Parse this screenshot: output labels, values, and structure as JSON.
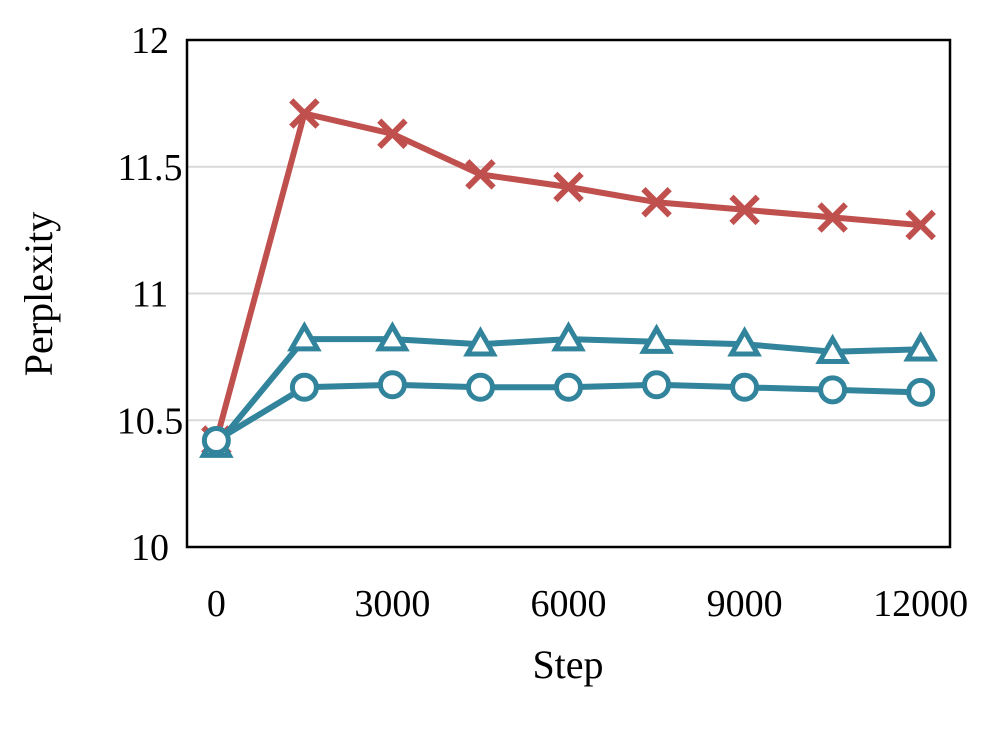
{
  "chart_data": {
    "type": "line",
    "title": "",
    "xlabel": "Step",
    "ylabel": "Perplexity",
    "xlim": [
      -500,
      12500
    ],
    "ylim": [
      10,
      12
    ],
    "xticks": [
      0,
      3000,
      6000,
      9000,
      12000
    ],
    "yticks": [
      10,
      10.5,
      11,
      11.5,
      12
    ],
    "ytick_labels": [
      "10",
      "10.5",
      "11",
      "11.5",
      "12"
    ],
    "grid": "horizontal",
    "legend": "none",
    "x": [
      0,
      1500,
      3000,
      4500,
      6000,
      7500,
      9000,
      10500,
      12000
    ],
    "series": [
      {
        "marker": "x",
        "color": "#c0504d",
        "values": [
          10.42,
          11.71,
          11.63,
          11.47,
          11.42,
          11.36,
          11.33,
          11.3,
          11.27
        ]
      },
      {
        "marker": "triangle",
        "color": "#31849b",
        "values": [
          10.4,
          10.82,
          10.82,
          10.8,
          10.82,
          10.81,
          10.8,
          10.77,
          10.78
        ]
      },
      {
        "marker": "circle",
        "color": "#31849b",
        "values": [
          10.42,
          10.63,
          10.64,
          10.63,
          10.63,
          10.64,
          10.63,
          10.62,
          10.61
        ]
      }
    ]
  }
}
